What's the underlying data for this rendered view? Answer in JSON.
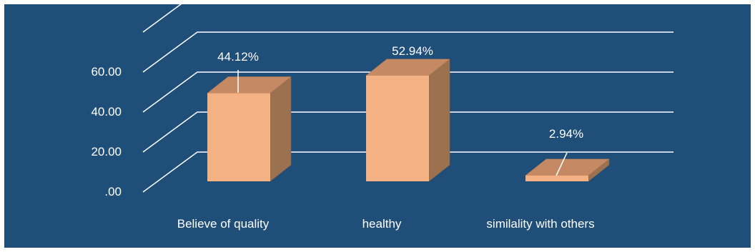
{
  "chart_data": {
    "type": "bar",
    "style": "3d",
    "categories": [
      "Believe of quality",
      "healthy",
      "similality with others"
    ],
    "values": [
      44.12,
      52.94,
      2.94
    ],
    "data_labels": [
      "44.12%",
      "52.94%",
      "2.94%"
    ],
    "y_ticks": [
      ".00",
      "20.00",
      "40.00",
      "60.00"
    ],
    "ylim": [
      0,
      80
    ],
    "grid": true,
    "colors": {
      "background": "#1f4e79",
      "bar_front": "#f4b183",
      "bar_top": "#c58963",
      "bar_side": "#9c7150",
      "gridline": "#ffffff",
      "text": "#ffffff"
    }
  }
}
